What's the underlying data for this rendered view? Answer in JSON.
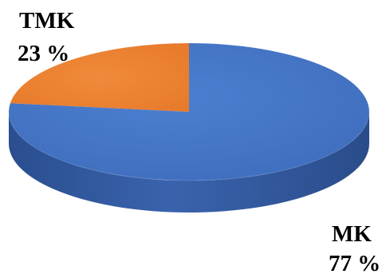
{
  "chart_data": {
    "type": "pie",
    "style": "3d",
    "slices": [
      {
        "label": "TMK",
        "value": 23,
        "value_label": "23 %",
        "color": "#ED7D31"
      },
      {
        "label": "MK",
        "value": 77,
        "value_label": "77 %",
        "color": "#4472C4"
      }
    ]
  }
}
